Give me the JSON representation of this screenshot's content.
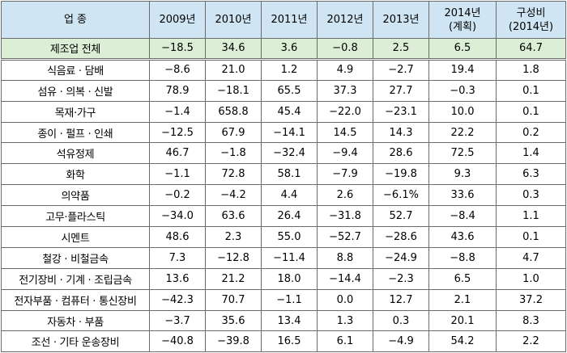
{
  "header": {
    "industry": "업 종",
    "y2009": "2009년",
    "y2010": "2010년",
    "y2011": "2011년",
    "y2012": "2012년",
    "y2013": "2013년",
    "y2014_line1": "2014년",
    "y2014_line2": "(계획)",
    "share_line1": "구성비",
    "share_line2": "(2014년)"
  },
  "total": {
    "name": "제조업 전체",
    "values": [
      "−18.5",
      "34.6",
      "3.6",
      "−0.8",
      "2.5",
      "6.5",
      "64.7"
    ]
  },
  "rows": [
    {
      "name": "식음료 · 담배",
      "values": [
        "−8.6",
        "21.0",
        "1.2",
        "4.9",
        "−2.7",
        "19.4",
        "1.8"
      ]
    },
    {
      "name": "섬유 · 의복 · 신발",
      "values": [
        "78.9",
        "−18.1",
        "65.5",
        "37.3",
        "27.7",
        "−0.3",
        "0.1"
      ]
    },
    {
      "name": "목재·가구",
      "values": [
        "−1.4",
        "658.8",
        "45.4",
        "−22.0",
        "−23.1",
        "10.0",
        "0.1"
      ]
    },
    {
      "name": "종이 · 펄프 · 인쇄",
      "values": [
        "−12.5",
        "67.9",
        "−14.1",
        "14.5",
        "14.3",
        "22.2",
        "0.2"
      ]
    },
    {
      "name": "석유정제",
      "values": [
        "46.7",
        "−1.8",
        "−32.4",
        "−9.4",
        "28.6",
        "72.5",
        "1.4"
      ]
    },
    {
      "name": "화학",
      "values": [
        "−1.1",
        "72.8",
        "58.1",
        "−7.9",
        "−19.8",
        "9.3",
        "6.3"
      ]
    },
    {
      "name": "의약품",
      "values": [
        "−0.2",
        "−4.2",
        "4.4",
        "2.6",
        "−6.1%",
        "33.6",
        "0.3"
      ]
    },
    {
      "name": "고무·플라스틱",
      "values": [
        "−34.0",
        "63.6",
        "26.4",
        "−31.8",
        "52.7",
        "−8.4",
        "1.1"
      ]
    },
    {
      "name": "시멘트",
      "values": [
        "48.6",
        "2.3",
        "55.0",
        "−52.7",
        "−28.6",
        "43.6",
        "0.1"
      ]
    },
    {
      "name": "철강 · 비철금속",
      "values": [
        "7.3",
        "−12.8",
        "−11.4",
        "8.8",
        "−24.9",
        "−8.8",
        "4.7"
      ]
    },
    {
      "name": "전기장비 · 기계 · 조립금속",
      "values": [
        "13.6",
        "21.2",
        "18.0",
        "−14.4",
        "−2.3",
        "6.5",
        "1.0"
      ]
    },
    {
      "name": "전자부품 · 컴퓨터 · 통신장비",
      "values": [
        "−42.3",
        "70.7",
        "−1.1",
        "0.0",
        "12.7",
        "2.1",
        "37.2"
      ]
    },
    {
      "name": "자동차 · 부품",
      "values": [
        "−3.7",
        "35.6",
        "13.4",
        "1.3",
        "0.3",
        "20.1",
        "8.3"
      ]
    },
    {
      "name": "조선 · 기타 운송장비",
      "values": [
        "−40.8",
        "−39.8",
        "16.5",
        "6.1",
        "−4.9",
        "54.2",
        "2.2"
      ]
    }
  ]
}
